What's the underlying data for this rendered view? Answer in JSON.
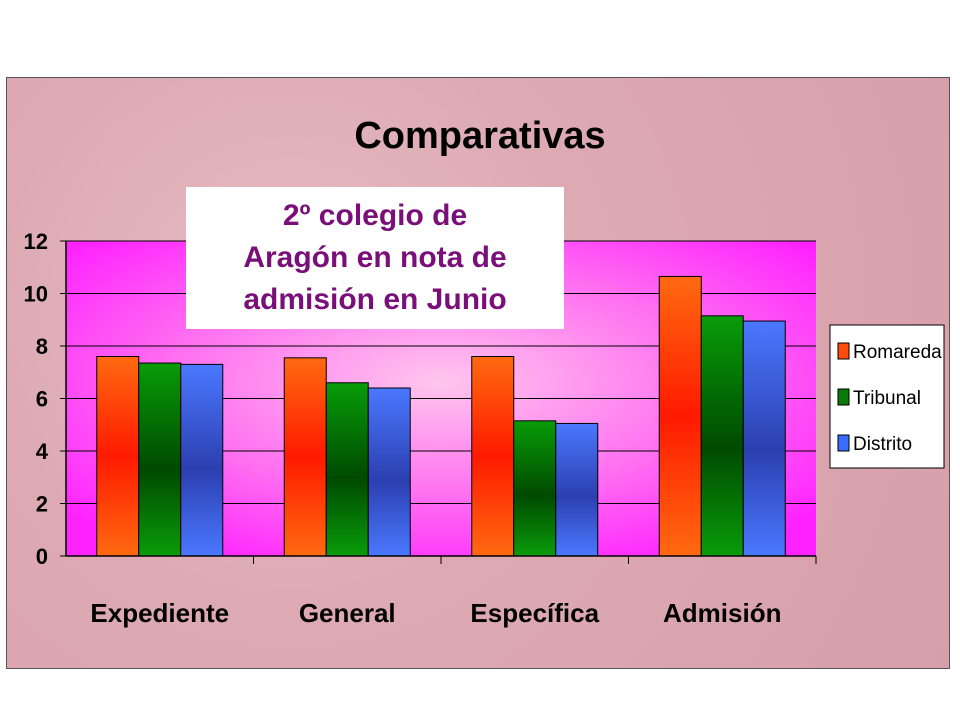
{
  "chart_data": {
    "type": "bar",
    "title": "Comparativas",
    "categories": [
      "Expediente",
      "General",
      "Específica",
      "Admisión"
    ],
    "series": [
      {
        "name": "Romareda",
        "values": [
          7.6,
          7.55,
          7.6,
          10.65
        ],
        "color": "#ff5a14"
      },
      {
        "name": "Tribunal",
        "values": [
          7.35,
          6.6,
          5.15,
          9.15
        ],
        "color": "#0a8a0a"
      },
      {
        "name": "Distrito",
        "values": [
          7.3,
          6.4,
          5.05,
          8.95
        ],
        "color": "#3a6dff"
      }
    ],
    "ylim": [
      0,
      12
    ],
    "yticks": [
      "0",
      "2",
      "4",
      "6",
      "8",
      "10",
      "12"
    ],
    "legend_position": "right",
    "grid": true,
    "plot_background": "#ff33ff"
  },
  "annotation": {
    "lines": [
      "2º colegio de",
      "Aragón en nota de",
      "admisión en Junio"
    ],
    "color": "#7a0f7a"
  }
}
